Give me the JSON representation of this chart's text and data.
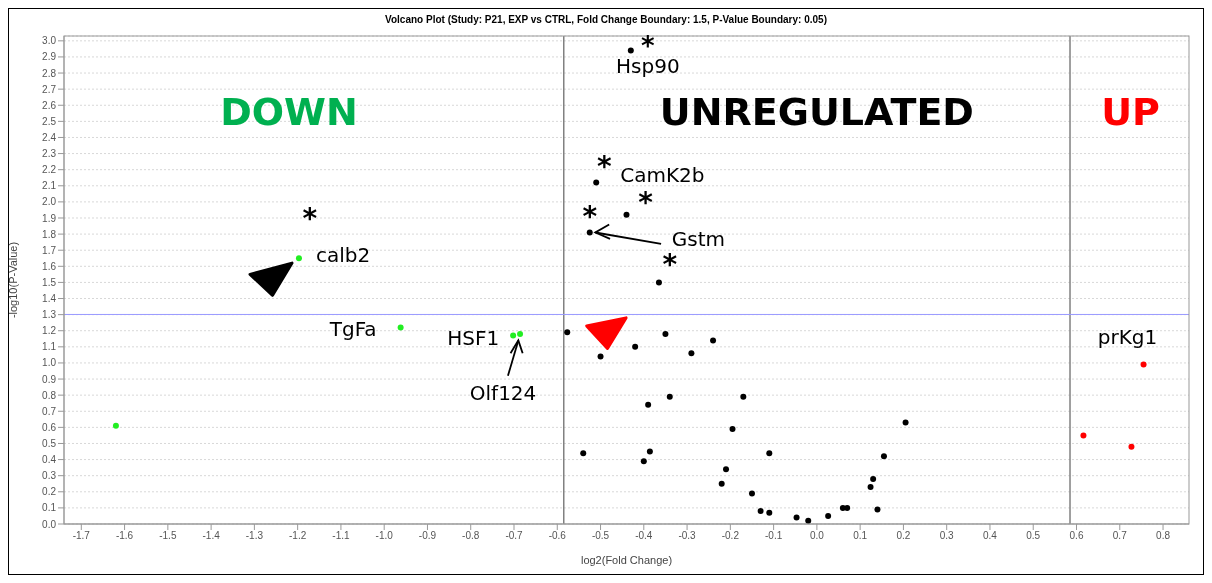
{
  "chart_data": {
    "type": "scatter",
    "title": "Volcano Plot (Study: P21, EXP vs CTRL, Fold Change Boundary: 1.5, P-Value Boundary: 0.05)",
    "xlabel": "log2(Fold Change)",
    "ylabel": "-log10(P-Value)",
    "series": [
      {
        "color": "#22ee22",
        "x": [
          -1.62,
          -1.197,
          -0.962,
          -0.702,
          -0.686
        ],
        "values": [
          0.61,
          1.65,
          1.22,
          1.17,
          1.18
        ]
      },
      {
        "color": "#ff0000",
        "x": [
          0.616,
          0.727,
          0.755
        ],
        "values": [
          0.55,
          0.48,
          0.99
        ]
      },
      {
        "color": "#000000",
        "x": [
          -0.43,
          -0.51,
          -0.44,
          -0.525,
          -0.365,
          -0.577,
          -0.5,
          -0.42,
          -0.35,
          -0.29,
          -0.24,
          -0.39,
          -0.34,
          -0.17,
          -0.195,
          0.205,
          -0.54,
          -0.386,
          -0.4,
          -0.11,
          0.155,
          -0.21,
          -0.22,
          -0.15,
          0.13,
          0.124,
          -0.13,
          -0.11,
          -0.047,
          -0.02,
          0.026,
          0.06,
          0.07,
          0.14
        ],
        "values": [
          2.94,
          2.12,
          1.92,
          1.81,
          1.5,
          1.19,
          1.04,
          1.1,
          1.18,
          1.06,
          1.14,
          0.74,
          0.79,
          0.79,
          0.59,
          0.63,
          0.44,
          0.45,
          0.39,
          0.44,
          0.42,
          0.34,
          0.25,
          0.19,
          0.28,
          0.23,
          0.08,
          0.07,
          0.04,
          0.02,
          0.05,
          0.1,
          0.1,
          0.09
        ]
      }
    ],
    "xlim": [
      -1.74,
      0.86
    ],
    "ylim": [
      0,
      3.03
    ],
    "xticks": [
      -1.7,
      -1.6,
      -1.5,
      -1.4,
      -1.3,
      -1.2,
      -1.1,
      {
        "value": -1,
        "label": "-1.0"
      },
      -0.9,
      -0.8,
      -0.7,
      -0.6,
      -0.5,
      -0.4,
      -0.3,
      -0.2,
      -0.1,
      {
        "value": 0,
        "label": "0.0"
      },
      0.1,
      0.2,
      0.3,
      0.4,
      0.5,
      0.6,
      0.7,
      0.8
    ],
    "yticks": [
      {
        "value": 0,
        "label": "0.0"
      },
      0.1,
      0.2,
      0.3,
      0.4,
      0.5,
      0.6,
      0.7,
      0.8,
      0.9,
      {
        "value": 1,
        "label": "1.0"
      },
      1.1,
      1.2,
      1.3,
      1.4,
      1.5,
      1.6,
      1.7,
      1.8,
      1.9,
      {
        "value": 2,
        "label": "2.0"
      },
      2.1,
      2.2,
      2.3,
      2.4,
      2.5,
      2.6,
      2.7,
      2.8,
      2.9,
      {
        "value": 3,
        "label": "3.0"
      }
    ],
    "grid": "y",
    "marker": "circle",
    "legend": false,
    "ref_lines": [
      {
        "axis": "x",
        "value": -0.585,
        "label": null,
        "color": "#808080"
      },
      {
        "axis": "x",
        "value": 0.585,
        "label": null,
        "color": "#808080"
      },
      {
        "axis": "y",
        "value": 1.301,
        "label": null,
        "color": "#9999ff"
      }
    ],
    "annotations": [
      {
        "text": "Hsp90",
        "x": -0.43,
        "y": 2.94
      },
      {
        "text": "CamK2b",
        "x": -0.51,
        "y": 2.12
      },
      {
        "text": "Gstm",
        "x": -0.525,
        "y": 1.81
      },
      {
        "text": "calb2",
        "x": -1.197,
        "y": 1.65
      },
      {
        "text": "TgFa",
        "x": -0.962,
        "y": 1.22
      },
      {
        "text": "HSF1",
        "x": -0.702,
        "y": 1.17
      },
      {
        "text": "Olf124",
        "x": -0.686,
        "y": 1.18
      },
      {
        "text": "prKg1",
        "x": 0.755,
        "y": 0.99
      },
      {
        "text": "*",
        "x": -0.43,
        "y": 2.94
      },
      {
        "text": "*",
        "x": -0.51,
        "y": 2.12
      },
      {
        "text": "*",
        "x": -0.44,
        "y": 1.92
      },
      {
        "text": "*",
        "x": -0.525,
        "y": 1.81
      },
      {
        "text": "*",
        "x": -0.365,
        "y": 1.5
      },
      {
        "text": "*",
        "x": -1.197,
        "y": 1.65
      },
      "DOWN",
      "UNREGULATED",
      "UP"
    ]
  }
}
